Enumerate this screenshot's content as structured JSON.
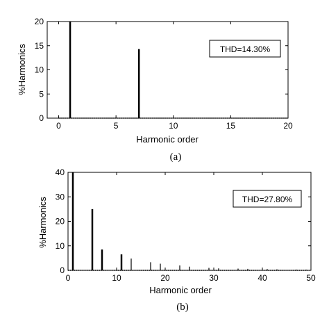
{
  "chart_data": [
    {
      "type": "bar",
      "caption": "(a)",
      "xlabel": "Harmonic order",
      "ylabel": "%Harmonics",
      "xlim": [
        -1,
        20
      ],
      "ylim": [
        0,
        20
      ],
      "xticks": [
        "0",
        "5",
        "10",
        "15",
        "20"
      ],
      "yticks": [
        "0",
        "5",
        "10",
        "15",
        "20"
      ],
      "annotation": "THD=14.30%",
      "x": [
        1,
        7
      ],
      "values": [
        20,
        14.3
      ]
    },
    {
      "type": "bar",
      "caption": "(b)",
      "xlabel": "Harmonic order",
      "ylabel": "%Harmonics",
      "xlim": [
        0,
        50
      ],
      "ylim": [
        0,
        40
      ],
      "xticks": [
        "0",
        "10",
        "20",
        "30",
        "40",
        "50"
      ],
      "yticks": [
        "0",
        "10",
        "20",
        "30",
        "40"
      ],
      "annotation": "THD=27.80%",
      "x": [
        1,
        5,
        7,
        11,
        13,
        17,
        19,
        23,
        25,
        29,
        31,
        35,
        37,
        41,
        43,
        47,
        49
      ],
      "values": [
        40,
        25,
        8.5,
        6.5,
        4.8,
        3.3,
        2.7,
        2.0,
        1.5,
        1.0,
        0.8,
        0.7,
        0.6,
        0.5,
        0.4,
        0.3,
        0.3
      ]
    }
  ]
}
